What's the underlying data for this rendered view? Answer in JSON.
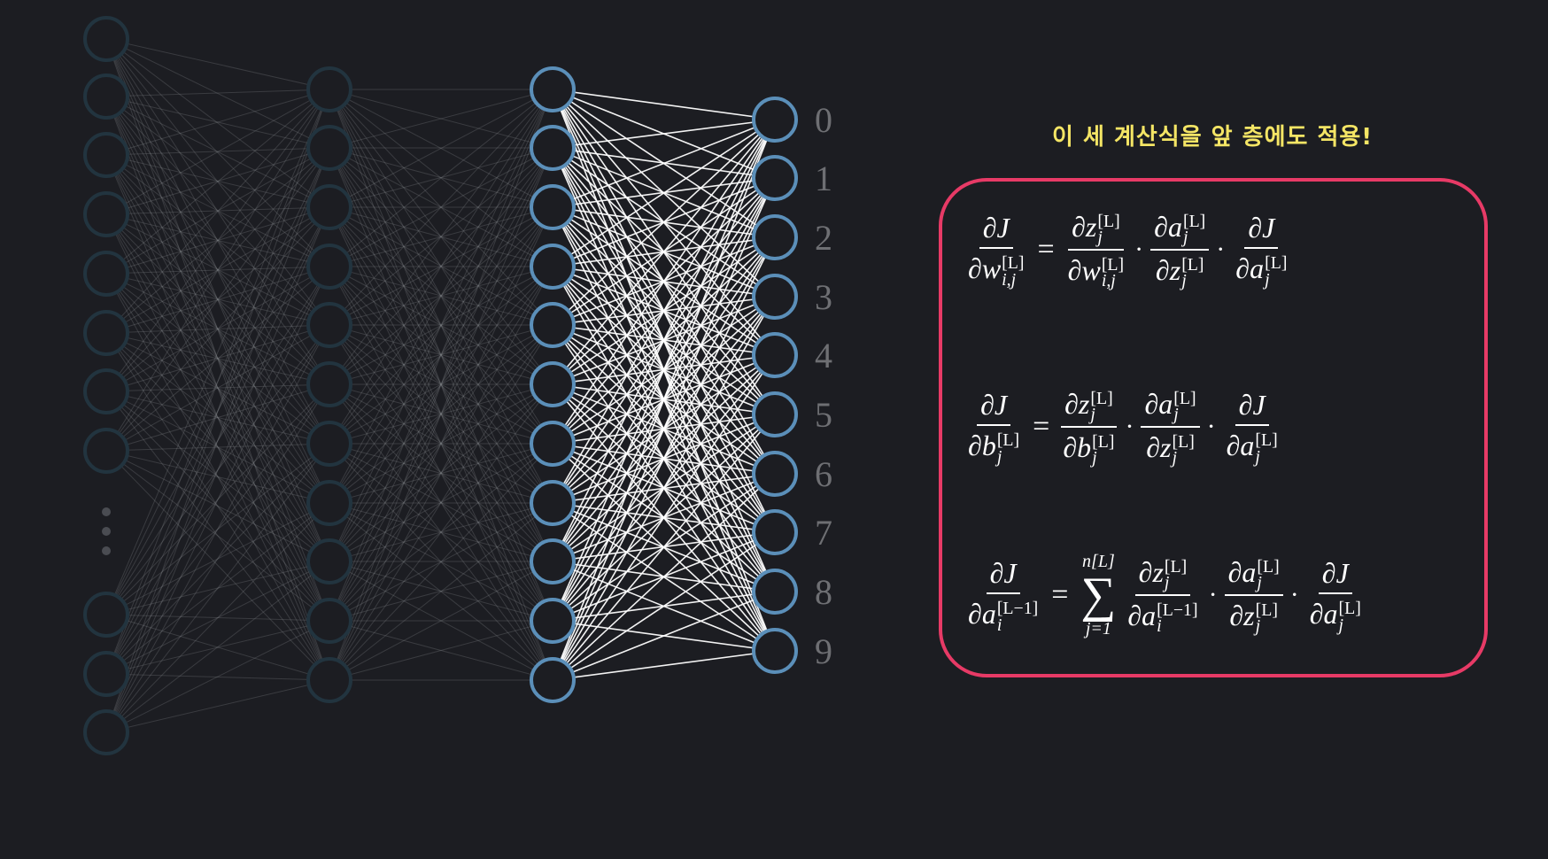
{
  "banner": "이 세 계산식을 앞 층에도 적용!",
  "network": {
    "output_labels": [
      "0",
      "1",
      "2",
      "3",
      "4",
      "5",
      "6",
      "7",
      "8",
      "9"
    ],
    "colors": {
      "active_node": "#5b8fb9",
      "dim_node": "#22343f",
      "active_edge": "#ffffff",
      "dim_edge": "#8a8c90",
      "label": "#6e6f73",
      "ellipsis": "#4a4c52"
    }
  },
  "formulas": {
    "accent": "#e73a66",
    "eq1": {
      "lhs_num": "∂J",
      "lhs_den_var": "∂w",
      "lhs_den_sup": "[L]",
      "lhs_den_sub": "i,j",
      "equals": "=",
      "f1_num_var": "∂z",
      "f1_num_sup": "[L]",
      "f1_num_sub": "j",
      "f1_den_var": "∂w",
      "f1_den_sup": "[L]",
      "f1_den_sub": "i,j",
      "dot": "·",
      "f2_num_var": "∂a",
      "f2_num_sup": "[L]",
      "f2_num_sub": "j",
      "f2_den_var": "∂z",
      "f2_den_sup": "[L]",
      "f2_den_sub": "j",
      "f3_num": "∂J",
      "f3_den_var": "∂a",
      "f3_den_sup": "[L]",
      "f3_den_sub": "j"
    },
    "eq2": {
      "lhs_num": "∂J",
      "lhs_den_var": "∂b",
      "lhs_den_sup": "[L]",
      "lhs_den_sub": "j",
      "equals": "=",
      "f1_num_var": "∂z",
      "f1_num_sup": "[L]",
      "f1_num_sub": "j",
      "f1_den_var": "∂b",
      "f1_den_sup": "[L]",
      "f1_den_sub": "j",
      "dot": "·",
      "f2_num_var": "∂a",
      "f2_num_sup": "[L]",
      "f2_num_sub": "j",
      "f2_den_var": "∂z",
      "f2_den_sup": "[L]",
      "f2_den_sub": "j",
      "f3_num": "∂J",
      "f3_den_var": "∂a",
      "f3_den_sup": "[L]",
      "f3_den_sub": "j"
    },
    "eq3": {
      "lhs_num": "∂J",
      "lhs_den_var": "∂a",
      "lhs_den_sup": "[L−1]",
      "lhs_den_sub": "i",
      "equals": "=",
      "sum_upper": "n[L]",
      "sum_symbol": "∑",
      "sum_lower": "j=1",
      "f1_num_var": "∂z",
      "f1_num_sup": "[L]",
      "f1_num_sub": "j",
      "f1_den_var": "∂a",
      "f1_den_sup": "[L−1]",
      "f1_den_sub": "i",
      "dot": "·",
      "f2_num_var": "∂a",
      "f2_num_sup": "[L]",
      "f2_num_sub": "j",
      "f2_den_var": "∂z",
      "f2_den_sup": "[L]",
      "f2_den_sub": "j",
      "f3_num": "∂J",
      "f3_den_var": "∂a",
      "f3_den_sup": "[L]",
      "f3_den_sub": "j"
    }
  }
}
